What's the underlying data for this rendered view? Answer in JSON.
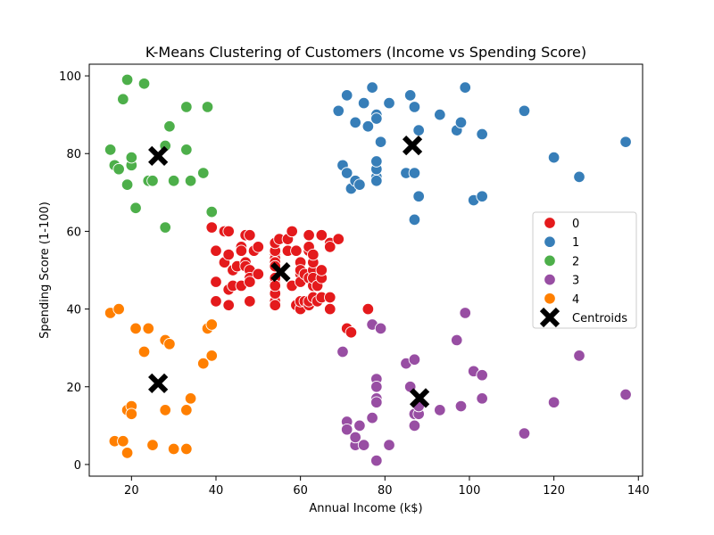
{
  "chart_data": {
    "type": "scatter",
    "title": "K-Means Clustering of Customers (Income vs Spending Score)",
    "xlabel": "Annual Income (k$)",
    "ylabel": "Spending Score (1-100)",
    "xlim": [
      10,
      141
    ],
    "ylim": [
      -3,
      103
    ],
    "xticks": [
      20,
      40,
      60,
      80,
      100,
      120,
      140
    ],
    "yticks": [
      0,
      20,
      40,
      60,
      80,
      100
    ],
    "grid": false,
    "legend_position": "center-right",
    "series": [
      {
        "name": "0",
        "color": "#e41a1c",
        "points": [
          [
            39,
            61
          ],
          [
            40,
            47
          ],
          [
            40,
            42
          ],
          [
            40,
            55
          ],
          [
            42,
            52
          ],
          [
            42,
            60
          ],
          [
            43,
            41
          ],
          [
            43,
            54
          ],
          [
            43,
            60
          ],
          [
            43,
            45
          ],
          [
            44,
            50
          ],
          [
            44,
            46
          ],
          [
            45,
            51
          ],
          [
            46,
            46
          ],
          [
            46,
            56
          ],
          [
            46,
            55
          ],
          [
            47,
            52
          ],
          [
            47,
            59
          ],
          [
            47,
            51
          ],
          [
            48,
            59
          ],
          [
            48,
            50
          ],
          [
            48,
            48
          ],
          [
            48,
            47
          ],
          [
            48,
            42
          ],
          [
            49,
            55
          ],
          [
            50,
            49
          ],
          [
            50,
            56
          ],
          [
            54,
            47
          ],
          [
            54,
            54
          ],
          [
            54,
            53
          ],
          [
            54,
            48
          ],
          [
            54,
            52
          ],
          [
            54,
            42
          ],
          [
            54,
            51
          ],
          [
            54,
            55
          ],
          [
            54,
            41
          ],
          [
            54,
            44
          ],
          [
            54,
            57
          ],
          [
            54,
            46
          ],
          [
            55,
            58
          ],
          [
            57,
            55
          ],
          [
            57,
            58
          ],
          [
            58,
            60
          ],
          [
            58,
            46
          ],
          [
            59,
            55
          ],
          [
            59,
            41
          ],
          [
            60,
            49
          ],
          [
            60,
            40
          ],
          [
            60,
            42
          ],
          [
            60,
            52
          ],
          [
            60,
            47
          ],
          [
            60,
            50
          ],
          [
            61,
            42
          ],
          [
            61,
            49
          ],
          [
            62,
            41
          ],
          [
            62,
            48
          ],
          [
            62,
            59
          ],
          [
            62,
            55
          ],
          [
            62,
            56
          ],
          [
            62,
            42
          ],
          [
            63,
            50
          ],
          [
            63,
            46
          ],
          [
            63,
            43
          ],
          [
            63,
            48
          ],
          [
            63,
            52
          ],
          [
            63,
            54
          ],
          [
            64,
            42
          ],
          [
            64,
            46
          ],
          [
            65,
            48
          ],
          [
            65,
            50
          ],
          [
            65,
            43
          ],
          [
            65,
            59
          ],
          [
            67,
            43
          ],
          [
            67,
            57
          ],
          [
            67,
            56
          ],
          [
            67,
            40
          ],
          [
            69,
            58
          ],
          [
            71,
            35
          ],
          [
            72,
            34
          ],
          [
            76,
            40
          ]
        ]
      },
      {
        "name": "1",
        "color": "#377eb8",
        "points": [
          [
            69,
            91
          ],
          [
            70,
            77
          ],
          [
            71,
            95
          ],
          [
            71,
            75
          ],
          [
            72,
            71
          ],
          [
            73,
            88
          ],
          [
            73,
            73
          ],
          [
            74,
            72
          ],
          [
            75,
            93
          ],
          [
            76,
            87
          ],
          [
            77,
            97
          ],
          [
            78,
            74
          ],
          [
            78,
            90
          ],
          [
            78,
            76
          ],
          [
            78,
            89
          ],
          [
            78,
            78
          ],
          [
            78,
            73
          ],
          [
            79,
            83
          ],
          [
            81,
            93
          ],
          [
            85,
            75
          ],
          [
            86,
            95
          ],
          [
            87,
            63
          ],
          [
            87,
            75
          ],
          [
            87,
            92
          ],
          [
            88,
            86
          ],
          [
            88,
            69
          ],
          [
            93,
            90
          ],
          [
            97,
            86
          ],
          [
            98,
            88
          ],
          [
            99,
            97
          ],
          [
            101,
            68
          ],
          [
            103,
            85
          ],
          [
            103,
            69
          ],
          [
            113,
            91
          ],
          [
            120,
            79
          ],
          [
            126,
            74
          ],
          [
            137,
            83
          ]
        ]
      },
      {
        "name": "2",
        "color": "#4daf4a",
        "points": [
          [
            15,
            81
          ],
          [
            16,
            77
          ],
          [
            17,
            76
          ],
          [
            18,
            94
          ],
          [
            19,
            72
          ],
          [
            19,
            99
          ],
          [
            20,
            77
          ],
          [
            20,
            79
          ],
          [
            21,
            66
          ],
          [
            23,
            98
          ],
          [
            24,
            73
          ],
          [
            25,
            73
          ],
          [
            28,
            82
          ],
          [
            28,
            61
          ],
          [
            29,
            87
          ],
          [
            30,
            73
          ],
          [
            33,
            81
          ],
          [
            33,
            92
          ],
          [
            34,
            73
          ],
          [
            37,
            75
          ],
          [
            38,
            92
          ],
          [
            39,
            65
          ]
        ]
      },
      {
        "name": "3",
        "color": "#984ea3",
        "points": [
          [
            70,
            29
          ],
          [
            71,
            11
          ],
          [
            71,
            9
          ],
          [
            73,
            5
          ],
          [
            73,
            7
          ],
          [
            74,
            10
          ],
          [
            75,
            5
          ],
          [
            77,
            12
          ],
          [
            77,
            36
          ],
          [
            78,
            22
          ],
          [
            78,
            17
          ],
          [
            78,
            20
          ],
          [
            78,
            16
          ],
          [
            78,
            1
          ],
          [
            79,
            35
          ],
          [
            81,
            5
          ],
          [
            85,
            26
          ],
          [
            86,
            20
          ],
          [
            87,
            27
          ],
          [
            87,
            13
          ],
          [
            87,
            10
          ],
          [
            88,
            13
          ],
          [
            88,
            15
          ],
          [
            93,
            14
          ],
          [
            97,
            32
          ],
          [
            98,
            15
          ],
          [
            99,
            39
          ],
          [
            101,
            24
          ],
          [
            103,
            17
          ],
          [
            103,
            23
          ],
          [
            113,
            8
          ],
          [
            120,
            16
          ],
          [
            126,
            28
          ],
          [
            137,
            18
          ]
        ]
      },
      {
        "name": "4",
        "color": "#ff7f00",
        "points": [
          [
            15,
            39
          ],
          [
            16,
            6
          ],
          [
            17,
            40
          ],
          [
            18,
            6
          ],
          [
            19,
            3
          ],
          [
            19,
            14
          ],
          [
            20,
            15
          ],
          [
            20,
            13
          ],
          [
            21,
            35
          ],
          [
            23,
            29
          ],
          [
            24,
            35
          ],
          [
            25,
            5
          ],
          [
            28,
            14
          ],
          [
            28,
            32
          ],
          [
            29,
            31
          ],
          [
            30,
            4
          ],
          [
            33,
            4
          ],
          [
            33,
            14
          ],
          [
            34,
            17
          ],
          [
            37,
            26
          ],
          [
            38,
            35
          ],
          [
            39,
            36
          ],
          [
            39,
            28
          ]
        ]
      }
    ],
    "centroids": {
      "name": "Centroids",
      "color": "#000000",
      "points": [
        [
          26.3,
          79.4
        ],
        [
          55.3,
          49.5
        ],
        [
          86.5,
          82.1
        ],
        [
          88.2,
          17.1
        ],
        [
          26.3,
          20.9
        ]
      ]
    }
  }
}
